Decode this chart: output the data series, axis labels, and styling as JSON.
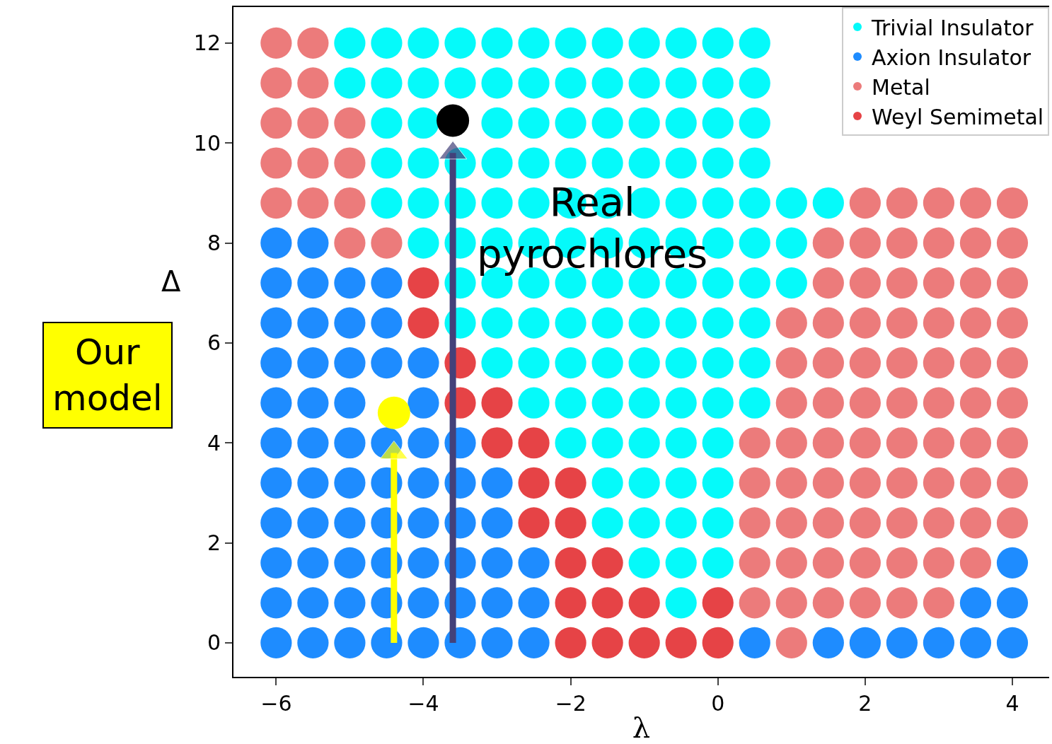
{
  "chart_data": {
    "type": "scatter",
    "xlabel": "λ",
    "ylabel": "Δ",
    "marker": "circle",
    "legend": "top right",
    "xlim": [
      -6.58,
      4.5
    ],
    "ylim": [
      -0.68,
      12.72
    ],
    "xticks": [
      {
        "value": -6,
        "label": "−6"
      },
      {
        "value": -4,
        "label": "−4"
      },
      {
        "value": -2,
        "label": "−2"
      },
      0,
      2,
      4
    ],
    "yticks": [
      0,
      2,
      4,
      6,
      8,
      10,
      12
    ],
    "annotations": [
      "Real\npyrochlores",
      "Our\nmodel"
    ],
    "series": [
      {
        "name": "Trivial Insulator",
        "color": "#05fafa",
        "x": [
          -0.5,
          -1,
          -0.5,
          0,
          -1.5,
          -1,
          -0.5,
          0,
          -1.5,
          -1,
          -0.5,
          0,
          -2,
          -1.5,
          -1,
          -0.5,
          0,
          -2.5,
          -2,
          -1.5,
          -1,
          -0.5,
          0,
          0.5,
          -3,
          -2.5,
          -2,
          -1.5,
          -1,
          -0.5,
          0,
          0.5,
          -3.5,
          -3,
          -2.5,
          -2,
          -1.5,
          -1,
          -0.5,
          0,
          0.5,
          -3.5,
          -3,
          -2.5,
          -2,
          -1.5,
          -1,
          -0.5,
          0,
          0.5,
          1,
          -4,
          -3.5,
          -3,
          -2.5,
          -2,
          -1.5,
          -1,
          -0.5,
          0,
          0.5,
          1,
          -4.5,
          -4,
          -3.5,
          -3,
          -2.5,
          -2,
          -1.5,
          -1,
          -0.5,
          0,
          0.5,
          1,
          1.5,
          -4.5,
          -4,
          -3.5,
          -3,
          -2.5,
          -2,
          -1.5,
          -1,
          -0.5,
          0,
          0.5,
          -4.5,
          -4,
          -3,
          -2.5,
          -2,
          -1.5,
          -1,
          -0.5,
          0,
          0.5,
          -5,
          -4.5,
          -4,
          -3.5,
          -3,
          -2.5,
          -2,
          -1.5,
          -1,
          -0.5,
          0,
          0.5,
          -5,
          -4.5,
          -4,
          -3.5,
          -3,
          -2.5,
          -2,
          -1.5,
          -1,
          -0.5,
          0,
          0.5
        ],
        "values": [
          0.8,
          1.6,
          1.6,
          1.6,
          2.4,
          2.4,
          2.4,
          2.4,
          3.2,
          3.2,
          3.2,
          3.2,
          4.0,
          4.0,
          4.0,
          4.0,
          4.0,
          4.8,
          4.8,
          4.8,
          4.8,
          4.8,
          4.8,
          4.8,
          5.6,
          5.6,
          5.6,
          5.6,
          5.6,
          5.6,
          5.6,
          5.6,
          6.4,
          6.4,
          6.4,
          6.4,
          6.4,
          6.4,
          6.4,
          6.4,
          6.4,
          7.2,
          7.2,
          7.2,
          7.2,
          7.2,
          7.2,
          7.2,
          7.2,
          7.2,
          7.2,
          8.0,
          8.0,
          8.0,
          8.0,
          8.0,
          8.0,
          8.0,
          8.0,
          8.0,
          8.0,
          8.0,
          8.8,
          8.8,
          8.8,
          8.8,
          8.8,
          8.8,
          8.8,
          8.8,
          8.8,
          8.8,
          8.8,
          8.8,
          8.8,
          9.6,
          9.6,
          9.6,
          9.6,
          9.6,
          9.6,
          9.6,
          9.6,
          9.6,
          9.6,
          9.6,
          10.4,
          10.4,
          10.4,
          10.4,
          10.4,
          10.4,
          10.4,
          10.4,
          10.4,
          10.4,
          11.2,
          11.2,
          11.2,
          11.2,
          11.2,
          11.2,
          11.2,
          11.2,
          11.2,
          11.2,
          11.2,
          11.2,
          12,
          12,
          12,
          12,
          12,
          12,
          12,
          12,
          12,
          12,
          12,
          12
        ]
      },
      {
        "name": "Axion Insulator",
        "color": "#1e8cff",
        "x": [
          -6,
          -5.5,
          -5,
          -4.5,
          -4,
          -3.5,
          -3,
          -2.5,
          0.5,
          1.5,
          2,
          2.5,
          3,
          3.5,
          4,
          -6,
          -5.5,
          -5,
          -4.5,
          -4,
          -3.5,
          -3,
          -2.5,
          3.5,
          4,
          -6,
          -5.5,
          -5,
          -4.5,
          -4,
          -3.5,
          -3,
          -2.5,
          4,
          -6,
          -5.5,
          -5,
          -4.5,
          -4,
          -3.5,
          -3,
          -6,
          -5.5,
          -5,
          -4.5,
          -4,
          -3.5,
          -3,
          -6,
          -5.5,
          -5,
          -4.5,
          -4,
          -3.5,
          -6,
          -5.5,
          -5,
          -4.5,
          -4,
          -6,
          -5.5,
          -5,
          -4.5,
          -4,
          -6,
          -5.5,
          -5,
          -4.5,
          -6,
          -5.5,
          -5,
          -4.5,
          -6,
          -5.5
        ],
        "values": [
          0,
          0,
          0,
          0,
          0,
          0,
          0,
          0,
          0,
          0,
          0,
          0,
          0,
          0,
          0,
          0.8,
          0.8,
          0.8,
          0.8,
          0.8,
          0.8,
          0.8,
          0.8,
          0.8,
          0.8,
          1.6,
          1.6,
          1.6,
          1.6,
          1.6,
          1.6,
          1.6,
          1.6,
          1.6,
          2.4,
          2.4,
          2.4,
          2.4,
          2.4,
          2.4,
          2.4,
          3.2,
          3.2,
          3.2,
          3.2,
          3.2,
          3.2,
          3.2,
          4.0,
          4.0,
          4.0,
          4.0,
          4.0,
          4.0,
          4.8,
          4.8,
          4.8,
          null,
          4.8,
          5.6,
          5.6,
          5.6,
          5.6,
          5.6,
          6.4,
          6.4,
          6.4,
          6.4,
          7.2,
          7.2,
          7.2,
          7.2,
          8.0,
          8.0
        ]
      },
      {
        "name": "Metal",
        "color": "#ec7b7b",
        "x": [
          1,
          0.5,
          1,
          1.5,
          2,
          2.5,
          3,
          0.5,
          1,
          1.5,
          2,
          2.5,
          3,
          3.5,
          0.5,
          1,
          1.5,
          2,
          2.5,
          3,
          3.5,
          4,
          0.5,
          1,
          1.5,
          2,
          2.5,
          3,
          3.5,
          4,
          0.5,
          1,
          1.5,
          2,
          2.5,
          3,
          3.5,
          4,
          1,
          1.5,
          2,
          2.5,
          3,
          3.5,
          4,
          1,
          1.5,
          2,
          2.5,
          3,
          3.5,
          4,
          1,
          1.5,
          2,
          2.5,
          3,
          3.5,
          4,
          1.5,
          2,
          2.5,
          3,
          3.5,
          4,
          -5,
          -4.5,
          1.5,
          2,
          2.5,
          3,
          3.5,
          4,
          -6,
          -5.5,
          -5,
          2,
          2.5,
          3,
          3.5,
          4,
          -6,
          -5.5,
          -5,
          -6,
          -5.5,
          -5,
          -6,
          -5.5,
          -6,
          -5.5
        ],
        "values": [
          0,
          0.8,
          0.8,
          0.8,
          0.8,
          0.8,
          0.8,
          1.6,
          1.6,
          1.6,
          1.6,
          1.6,
          1.6,
          1.6,
          2.4,
          2.4,
          2.4,
          2.4,
          2.4,
          2.4,
          2.4,
          2.4,
          3.2,
          3.2,
          3.2,
          3.2,
          3.2,
          3.2,
          3.2,
          3.2,
          4.0,
          4.0,
          4.0,
          4.0,
          4.0,
          4.0,
          4.0,
          4.0,
          4.8,
          4.8,
          4.8,
          4.8,
          4.8,
          4.8,
          4.8,
          5.6,
          5.6,
          5.6,
          5.6,
          5.6,
          5.6,
          5.6,
          6.4,
          6.4,
          6.4,
          6.4,
          6.4,
          6.4,
          6.4,
          7.2,
          7.2,
          7.2,
          7.2,
          7.2,
          7.2,
          8.0,
          8.0,
          8.0,
          8.0,
          8.0,
          8.0,
          8.0,
          8.0,
          8.8,
          8.8,
          8.8,
          8.8,
          8.8,
          8.8,
          8.8,
          8.8,
          9.6,
          9.6,
          9.6,
          10.4,
          10.4,
          10.4,
          11.2,
          11.2,
          12,
          12
        ]
      },
      {
        "name": "Weyl Semimetal",
        "color": "#e64346",
        "x": [
          -2,
          -1.5,
          -1,
          -0.5,
          0,
          -2,
          -1.5,
          -1,
          0,
          -2,
          -1.5,
          -2.5,
          -2,
          -2.5,
          -2,
          -3,
          -2.5,
          -3.5,
          -3,
          -3.5,
          -4,
          -4
        ],
        "values": [
          0,
          0,
          0,
          0,
          0,
          0.8,
          0.8,
          0.8,
          0.8,
          1.6,
          1.6,
          2.4,
          2.4,
          3.2,
          3.2,
          4.0,
          4.0,
          4.8,
          4.8,
          5.6,
          6.4,
          7.2
        ]
      },
      {
        "type": "line",
        "color": "#43417a",
        "marker": "triangle",
        "x": [
          -3.6,
          -3.6
        ],
        "values": [
          0,
          9.8
        ]
      },
      {
        "type": "line",
        "color": "#ffff00",
        "marker": "triangle",
        "x": [
          -4.4,
          -4.4
        ],
        "values": [
          0,
          3.8
        ]
      },
      {
        "color": "#000000",
        "marker": "circle",
        "x": [
          -3.6
        ],
        "values": [
          10.45
        ]
      },
      {
        "color": "#ffff00",
        "marker": "circle",
        "x": [
          -4.4
        ],
        "values": [
          4.6
        ]
      }
    ]
  }
}
